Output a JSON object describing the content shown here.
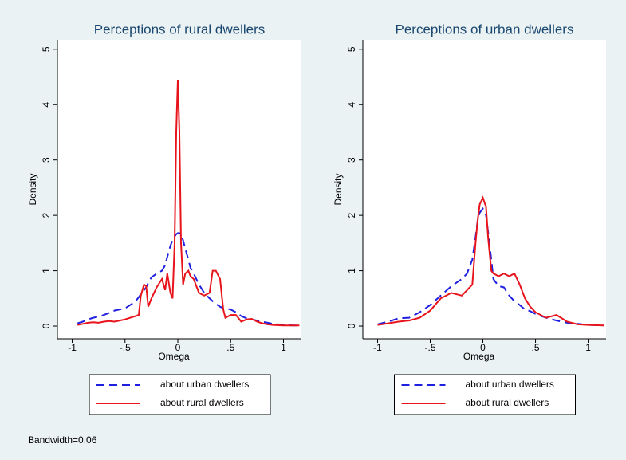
{
  "chart_data": [
    {
      "type": "line",
      "title": "Perceptions of rural dwellers",
      "xlabel": "Omega",
      "ylabel": "Density",
      "x": [
        -0.95,
        -0.9,
        -0.85,
        -0.8,
        -0.75,
        -0.7,
        -0.65,
        -0.6,
        -0.55,
        -0.5,
        -0.45,
        -0.4,
        -0.37,
        -0.35,
        -0.32,
        -0.3,
        -0.28,
        -0.25,
        -0.2,
        -0.15,
        -0.12,
        -0.1,
        -0.07,
        -0.05,
        -0.03,
        -0.015,
        0,
        0.015,
        0.03,
        0.05,
        0.07,
        0.1,
        0.12,
        0.15,
        0.2,
        0.25,
        0.3,
        0.33,
        0.36,
        0.4,
        0.43,
        0.45,
        0.5,
        0.55,
        0.6,
        0.65,
        0.7,
        0.75,
        0.8,
        0.85,
        0.9,
        1.0,
        1.1,
        1.15
      ],
      "series": [
        {
          "name": "about urban dwellers",
          "color": "#1f1fe0",
          "line_style": "dashed",
          "values": [
            0.05,
            0.08,
            0.12,
            0.15,
            0.17,
            0.2,
            0.24,
            0.28,
            0.3,
            0.32,
            0.38,
            0.45,
            0.52,
            0.58,
            0.65,
            0.7,
            0.78,
            0.88,
            0.95,
            1.0,
            1.1,
            1.25,
            1.45,
            1.55,
            1.62,
            1.66,
            1.68,
            1.68,
            1.65,
            1.55,
            1.4,
            1.2,
            1.05,
            0.95,
            0.75,
            0.6,
            0.5,
            0.45,
            0.4,
            0.35,
            0.32,
            0.32,
            0.3,
            0.25,
            0.18,
            0.14,
            0.12,
            0.1,
            0.08,
            0.06,
            0.04,
            0.02,
            0.01,
            0.01
          ]
        },
        {
          "name": "about rural dwellers",
          "color": "#e8141b",
          "line_style": "solid",
          "values": [
            0.02,
            0.04,
            0.06,
            0.07,
            0.06,
            0.08,
            0.09,
            0.08,
            0.1,
            0.12,
            0.15,
            0.18,
            0.2,
            0.55,
            0.75,
            0.72,
            0.35,
            0.5,
            0.7,
            0.85,
            0.65,
            0.95,
            0.6,
            0.5,
            1.5,
            3.5,
            4.45,
            3.5,
            1.5,
            0.75,
            0.95,
            1.0,
            0.9,
            0.85,
            0.6,
            0.55,
            0.6,
            1.0,
            1.0,
            0.85,
            0.3,
            0.15,
            0.2,
            0.2,
            0.08,
            0.12,
            0.13,
            0.08,
            0.05,
            0.03,
            0.02,
            0.01,
            0.01,
            0.01
          ]
        }
      ],
      "xlim": [
        -1.14,
        1.17
      ],
      "ylim": [
        -0.23,
        5.17
      ],
      "xticks": [
        -1,
        {
          "value": -0.5,
          "label": "-.5"
        },
        0,
        {
          "value": 0.5,
          "label": ".5"
        },
        1
      ],
      "yticks": [
        0,
        1,
        2,
        3,
        4,
        5
      ],
      "legend": "bottom"
    },
    {
      "type": "line",
      "title": "Perceptions of urban dwellers",
      "xlabel": "Omega",
      "ylabel": "Density",
      "x": [
        -1,
        -0.9,
        -0.8,
        -0.7,
        -0.6,
        -0.5,
        -0.4,
        -0.3,
        -0.2,
        -0.15,
        -0.1,
        -0.07,
        -0.05,
        -0.03,
        0,
        0.03,
        0.05,
        0.08,
        0.1,
        0.15,
        0.2,
        0.25,
        0.3,
        0.35,
        0.4,
        0.45,
        0.5,
        0.6,
        0.7,
        0.8,
        0.9,
        1,
        1.15
      ],
      "series": [
        {
          "name": "about urban dwellers",
          "color": "#1f1fe0",
          "line_style": "dashed",
          "values": [
            0.03,
            0.08,
            0.14,
            0.15,
            0.25,
            0.38,
            0.55,
            0.72,
            0.85,
            0.95,
            1.2,
            1.6,
            1.9,
            2.05,
            2.12,
            2.0,
            1.7,
            1.2,
            0.85,
            0.72,
            0.7,
            0.55,
            0.45,
            0.38,
            0.3,
            0.27,
            0.22,
            0.15,
            0.1,
            0.06,
            0.04,
            0.02,
            0.01
          ]
        },
        {
          "name": "about rural dwellers",
          "color": "#e8141b",
          "line_style": "solid",
          "values": [
            0.02,
            0.05,
            0.08,
            0.1,
            0.15,
            0.28,
            0.5,
            0.6,
            0.55,
            0.65,
            0.75,
            1.5,
            1.9,
            2.2,
            2.32,
            2.15,
            1.6,
            1.0,
            0.95,
            0.9,
            0.95,
            0.9,
            0.95,
            0.75,
            0.5,
            0.35,
            0.25,
            0.15,
            0.2,
            0.08,
            0.03,
            0.02,
            0.01
          ]
        }
      ],
      "xlim": [
        -1.14,
        1.17
      ],
      "ylim": [
        -0.23,
        5.17
      ],
      "xticks": [
        -1,
        {
          "value": -0.5,
          "label": "-.5"
        },
        0,
        {
          "value": 0.5,
          "label": ".5"
        },
        1
      ],
      "yticks": [
        0,
        1,
        2,
        3,
        4,
        5
      ],
      "legend": "bottom"
    }
  ],
  "note": "Bandwidth=0.06"
}
